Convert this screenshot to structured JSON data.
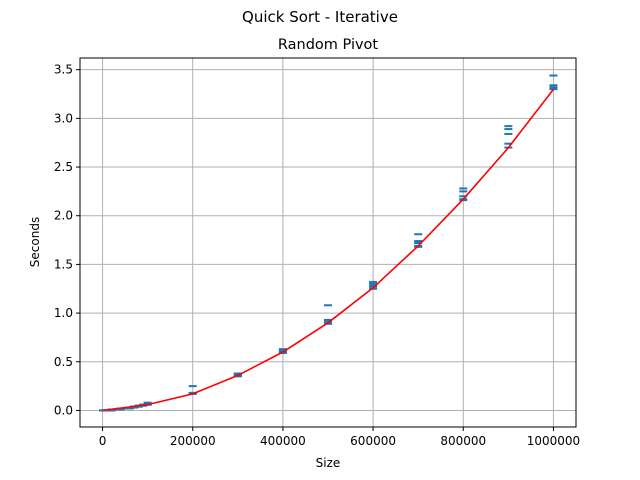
{
  "chart_data": {
    "type": "scatter",
    "suptitle": "Quick Sort - Iterative",
    "title": "Random Pivot",
    "xlabel": "Size",
    "ylabel": "Seconds",
    "xlim": [
      -50000,
      1050000
    ],
    "ylim": [
      -0.17,
      3.62
    ],
    "xticks": [
      0,
      200000,
      400000,
      600000,
      800000,
      1000000
    ],
    "xtick_labels": [
      "0",
      "200000",
      "400000",
      "600000",
      "800000",
      "1000000"
    ],
    "yticks": [
      0.0,
      0.5,
      1.0,
      1.5,
      2.0,
      2.5,
      3.0,
      3.5
    ],
    "ytick_labels": [
      "0.0",
      "0.5",
      "1.0",
      "1.5",
      "2.0",
      "2.5",
      "3.0",
      "3.5"
    ],
    "grid": true,
    "colors": {
      "points": "#1f77b4",
      "fit": "#ff0000",
      "grid": "#b0b0b0"
    },
    "series": [
      {
        "marker": "_",
        "x": [
          1000,
          1000,
          1000,
          1000,
          1000,
          10000,
          10000,
          10000,
          10000,
          10000,
          20000,
          20000,
          20000,
          20000,
          20000,
          30000,
          30000,
          30000,
          30000,
          30000,
          40000,
          40000,
          40000,
          40000,
          40000,
          50000,
          50000,
          50000,
          50000,
          50000,
          60000,
          60000,
          60000,
          60000,
          60000,
          70000,
          70000,
          70000,
          70000,
          70000,
          80000,
          80000,
          80000,
          80000,
          80000,
          90000,
          90000,
          90000,
          90000,
          90000,
          100000,
          100000,
          100000,
          100000,
          100000,
          200000,
          200000,
          200000,
          200000,
          200000,
          300000,
          300000,
          300000,
          300000,
          300000,
          400000,
          400000,
          400000,
          400000,
          400000,
          500000,
          500000,
          500000,
          500000,
          500000,
          600000,
          600000,
          600000,
          600000,
          600000,
          700000,
          700000,
          700000,
          700000,
          700000,
          800000,
          800000,
          800000,
          800000,
          800000,
          900000,
          900000,
          900000,
          900000,
          900000,
          1000000,
          1000000,
          1000000,
          1000000,
          1000000
        ],
        "y": [
          0.0,
          0.0,
          0.0,
          0.0,
          0.0,
          0.0,
          0.0,
          0.0,
          0.0,
          0.0,
          0.0,
          0.01,
          0.0,
          0.0,
          0.0,
          0.01,
          0.01,
          0.01,
          0.01,
          0.01,
          0.02,
          0.01,
          0.02,
          0.01,
          0.02,
          0.02,
          0.02,
          0.02,
          0.02,
          0.02,
          0.03,
          0.02,
          0.03,
          0.03,
          0.02,
          0.03,
          0.04,
          0.03,
          0.03,
          0.04,
          0.04,
          0.04,
          0.05,
          0.04,
          0.04,
          0.05,
          0.05,
          0.06,
          0.05,
          0.05,
          0.06,
          0.07,
          0.06,
          0.08,
          0.06,
          0.17,
          0.18,
          0.25,
          0.17,
          0.18,
          0.35,
          0.36,
          0.38,
          0.37,
          0.36,
          0.59,
          0.61,
          0.63,
          0.6,
          0.62,
          0.9,
          0.92,
          0.93,
          1.08,
          0.89,
          1.25,
          1.27,
          1.3,
          1.32,
          1.28,
          1.69,
          1.72,
          1.74,
          1.81,
          1.68,
          2.17,
          2.2,
          2.25,
          2.28,
          2.16,
          2.7,
          2.74,
          2.84,
          2.89,
          2.92,
          3.3,
          3.32,
          3.34,
          3.44,
          3.31
        ]
      },
      {
        "type": "line",
        "x": [
          0,
          100000,
          200000,
          300000,
          400000,
          500000,
          600000,
          700000,
          800000,
          900000,
          1000000
        ],
        "y": [
          0.0,
          0.06,
          0.17,
          0.36,
          0.6,
          0.9,
          1.26,
          1.69,
          2.17,
          2.7,
          3.3
        ]
      }
    ]
  }
}
